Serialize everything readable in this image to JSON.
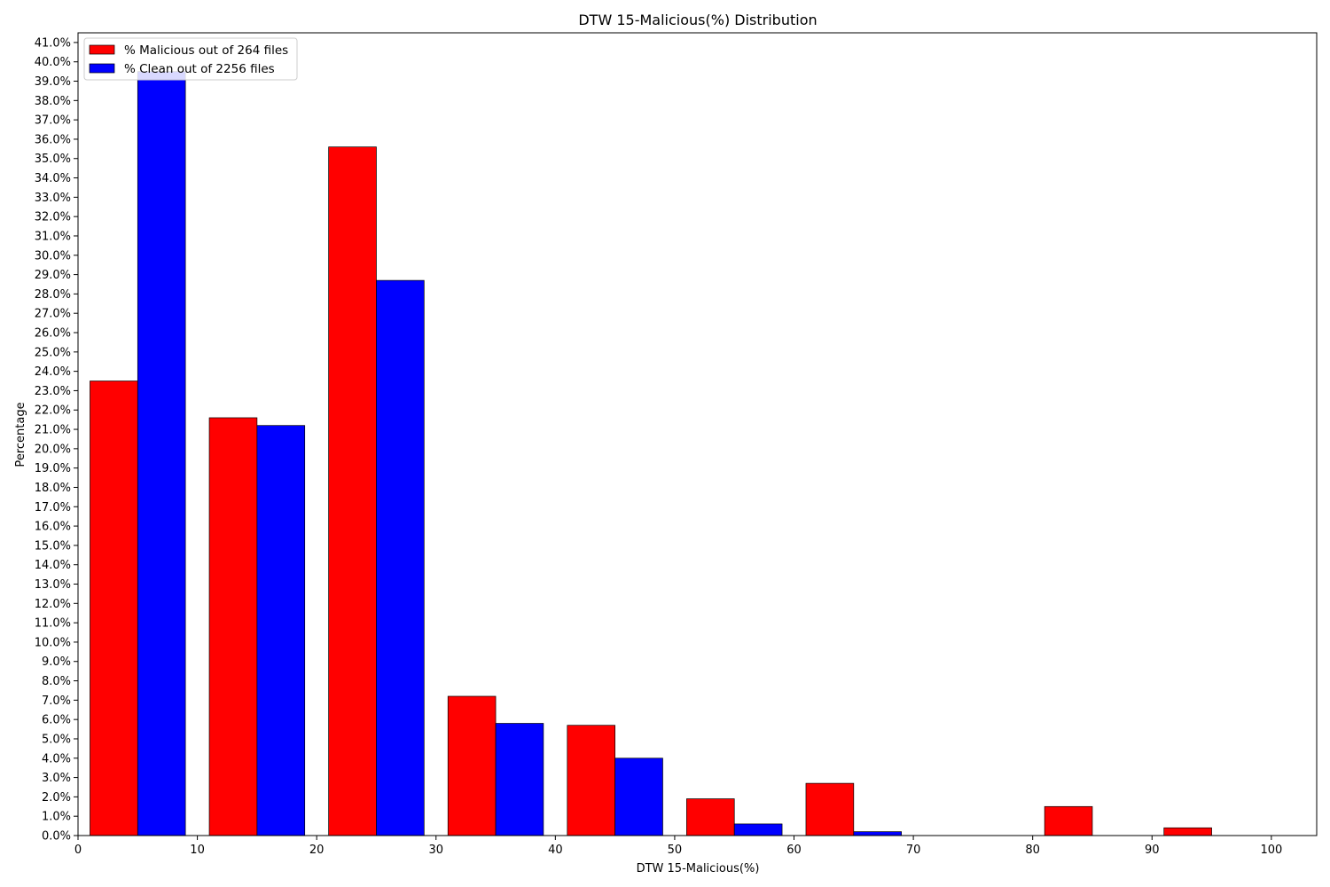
{
  "chart_data": {
    "type": "bar",
    "title": "DTW 15-Malicious(%) Distribution",
    "xlabel": "DTW 15-Malicious(%)",
    "ylabel": "Percentage",
    "xlim": [
      0,
      103.8
    ],
    "ylim": [
      0,
      41.5
    ],
    "xticks": [
      0,
      10,
      20,
      30,
      40,
      50,
      60,
      70,
      80,
      90,
      100
    ],
    "yticks": {
      "start": 0,
      "end": 41,
      "step": 1,
      "suffix": "%"
    },
    "grid": false,
    "legend_position": "top-left",
    "bin_width": 10,
    "bar_width": 4,
    "bin_starts": [
      1,
      11,
      21,
      31,
      41,
      51,
      61,
      71,
      81,
      91
    ],
    "series": [
      {
        "name": "% Malicious out of 264 files",
        "color": "#ff0000",
        "values": [
          23.5,
          21.6,
          35.6,
          7.2,
          5.7,
          1.9,
          2.7,
          0.0,
          1.5,
          0.4
        ]
      },
      {
        "name": "% Clean out of 2256 files",
        "color": "#0000ff",
        "values": [
          39.5,
          21.2,
          28.7,
          5.8,
          4.0,
          0.6,
          0.2,
          0.0,
          0.0,
          0.0
        ]
      }
    ]
  }
}
